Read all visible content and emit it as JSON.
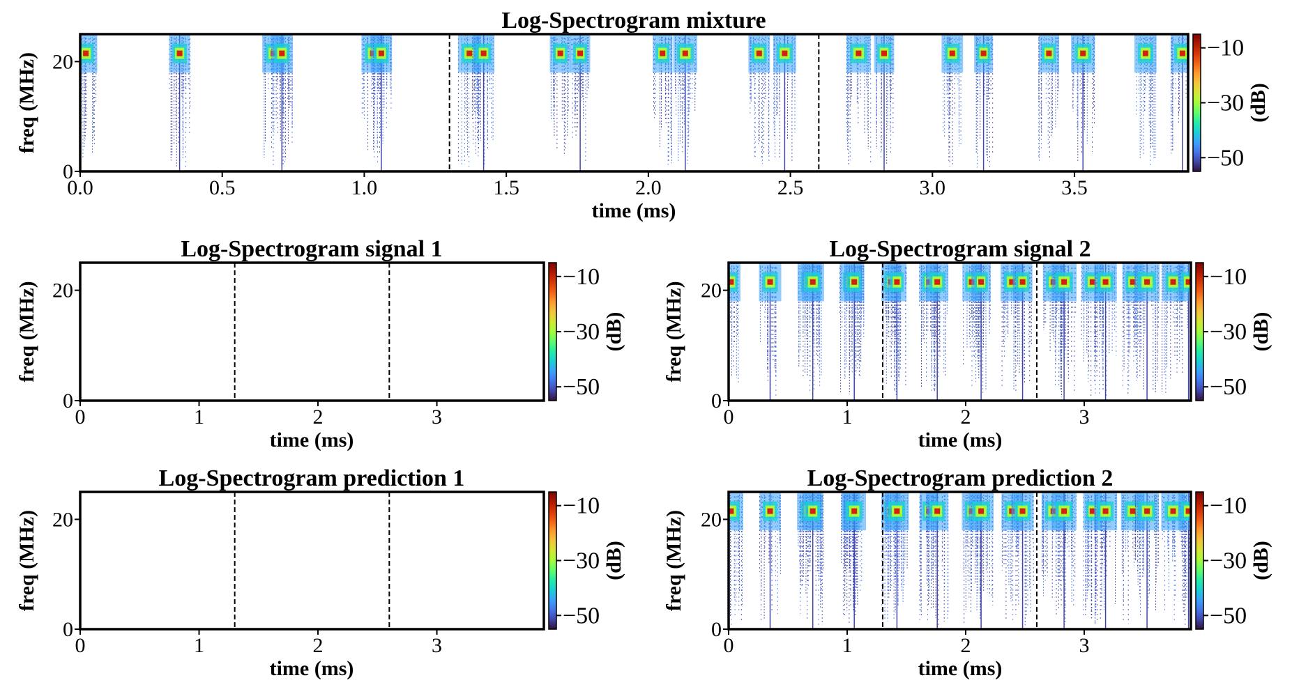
{
  "chart_data": [
    {
      "id": "mixture",
      "type": "heatmap",
      "title": "Log-Spectrogram mixture",
      "xlabel": "time (ms)",
      "ylabel": "freq (MHz)",
      "xlim": [
        0,
        3.9
      ],
      "ylim": [
        0,
        25
      ],
      "xticks": [
        0,
        0.5,
        1,
        1.5,
        2,
        2.5,
        3,
        3.5
      ],
      "xtick_labels": [
        "0.0",
        "0.5",
        "1.0",
        "1.5",
        "2.0",
        "2.5",
        "3.0",
        "3.5"
      ],
      "yticks": [
        0,
        20
      ],
      "ytick_labels": [
        "0",
        "20"
      ],
      "colorbar": {
        "label": "(dB)",
        "ticks": [
          -10,
          -30,
          -50
        ],
        "tick_labels": [
          "−10",
          "−30",
          "−50"
        ],
        "range": [
          -55,
          -5
        ]
      },
      "frame_dividers_ms": [
        1.3,
        2.6
      ],
      "pulse_center_freq_mhz": 21.5,
      "pulse_times_ms": [
        0.02,
        0.35,
        0.68,
        0.71,
        1.03,
        1.06,
        1.37,
        1.42,
        1.69,
        1.76,
        2.05,
        2.13,
        2.39,
        2.48,
        2.74,
        2.83,
        3.07,
        3.18,
        3.41,
        3.53,
        3.75,
        3.88
      ]
    },
    {
      "id": "signal1",
      "type": "heatmap",
      "title": "Log-Spectrogram signal 1",
      "xlabel": "time (ms)",
      "ylabel": "freq (MHz)",
      "xlim": [
        0,
        3.9
      ],
      "ylim": [
        0,
        25
      ],
      "xticks": [
        0,
        1,
        2,
        3
      ],
      "xtick_labels": [
        "0",
        "1",
        "2",
        "3"
      ],
      "yticks": [
        0,
        20
      ],
      "ytick_labels": [
        "0",
        "20"
      ],
      "colorbar": {
        "label": "(dB)",
        "ticks": [
          -10,
          -30,
          -50
        ],
        "tick_labels": [
          "−10",
          "−30",
          "−50"
        ],
        "range": [
          -55,
          -5
        ]
      },
      "frame_dividers_ms": [
        1.3,
        2.6
      ],
      "pulse_center_freq_mhz": 21.5,
      "pulse_times_ms": []
    },
    {
      "id": "signal2",
      "type": "heatmap",
      "title": "Log-Spectrogram signal 2",
      "xlabel": "time (ms)",
      "ylabel": "freq (MHz)",
      "xlim": [
        0,
        3.9
      ],
      "ylim": [
        0,
        25
      ],
      "xticks": [
        0,
        1,
        2,
        3
      ],
      "xtick_labels": [
        "0",
        "1",
        "2",
        "3"
      ],
      "yticks": [
        0,
        20
      ],
      "ytick_labels": [
        "0",
        "20"
      ],
      "colorbar": {
        "label": "(dB)",
        "ticks": [
          -10,
          -30,
          -50
        ],
        "tick_labels": [
          "−10",
          "−30",
          "−50"
        ],
        "range": [
          -55,
          -5
        ]
      },
      "frame_dividers_ms": [
        1.3,
        2.6
      ],
      "pulse_center_freq_mhz": 21.5,
      "pulse_times_ms": [
        0.02,
        0.35,
        0.68,
        0.71,
        1.03,
        1.06,
        1.37,
        1.42,
        1.69,
        1.76,
        2.05,
        2.13,
        2.39,
        2.48,
        2.74,
        2.83,
        3.07,
        3.18,
        3.41,
        3.53,
        3.75,
        3.88
      ]
    },
    {
      "id": "prediction1",
      "type": "heatmap",
      "title": "Log-Spectrogram prediction 1",
      "xlabel": "time (ms)",
      "ylabel": "freq (MHz)",
      "xlim": [
        0,
        3.9
      ],
      "ylim": [
        0,
        25
      ],
      "xticks": [
        0,
        1,
        2,
        3
      ],
      "xtick_labels": [
        "0",
        "1",
        "2",
        "3"
      ],
      "yticks": [
        0,
        20
      ],
      "ytick_labels": [
        "0",
        "20"
      ],
      "colorbar": {
        "label": "(dB)",
        "ticks": [
          -10,
          -30,
          -50
        ],
        "tick_labels": [
          "−10",
          "−30",
          "−50"
        ],
        "range": [
          -55,
          -5
        ]
      },
      "frame_dividers_ms": [
        1.3,
        2.6
      ],
      "pulse_center_freq_mhz": 21.5,
      "pulse_times_ms": []
    },
    {
      "id": "prediction2",
      "type": "heatmap",
      "title": "Log-Spectrogram prediction 2",
      "xlabel": "time (ms)",
      "ylabel": "freq (MHz)",
      "xlim": [
        0,
        3.9
      ],
      "ylim": [
        0,
        25
      ],
      "xticks": [
        0,
        1,
        2,
        3
      ],
      "xtick_labels": [
        "0",
        "1",
        "2",
        "3"
      ],
      "yticks": [
        0,
        20
      ],
      "ytick_labels": [
        "0",
        "20"
      ],
      "colorbar": {
        "label": "(dB)",
        "ticks": [
          -10,
          -30,
          -50
        ],
        "tick_labels": [
          "−10",
          "−30",
          "−50"
        ],
        "range": [
          -55,
          -5
        ]
      },
      "frame_dividers_ms": [
        1.3,
        2.6
      ],
      "pulse_center_freq_mhz": 21.5,
      "pulse_times_ms": [
        0.02,
        0.35,
        0.68,
        0.71,
        1.03,
        1.06,
        1.37,
        1.42,
        1.69,
        1.76,
        2.05,
        2.13,
        2.39,
        2.48,
        2.74,
        2.83,
        3.07,
        3.18,
        3.41,
        3.53,
        3.75,
        3.88
      ]
    }
  ],
  "colors": {
    "background": "#ffffff",
    "frame": "#000000",
    "pulse_core": "#d42010",
    "colormap": [
      "#30123b",
      "#4145ab",
      "#4675ed",
      "#39a2fc",
      "#1bcfd4",
      "#24eca6",
      "#61fc6c",
      "#a4fc3b",
      "#d1e834",
      "#f3c63a",
      "#fe9b2d",
      "#f36315",
      "#d93806",
      "#b11901",
      "#7a0403"
    ]
  }
}
